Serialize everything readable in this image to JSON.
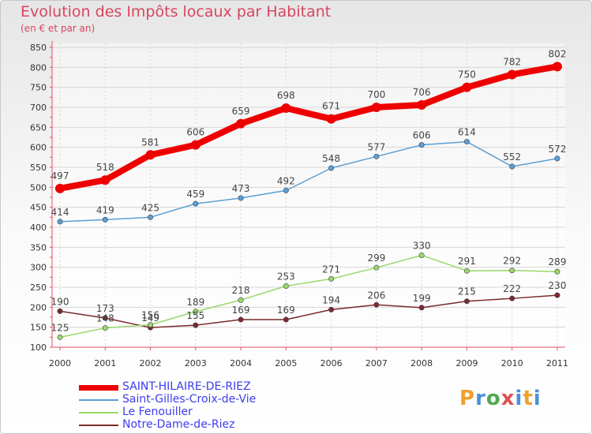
{
  "header": {
    "title": "Evolution des Impôts locaux par Habitant",
    "subtitle": "(en € et par an)"
  },
  "logo": {
    "text": "Proxiti",
    "letters": [
      "P",
      "r",
      "o",
      "x",
      "i",
      "t",
      "i"
    ]
  },
  "chart_data": {
    "type": "line",
    "title": "Evolution des Impôts locaux par Habitant",
    "subtitle": "(en € et par an)",
    "xlabel": "",
    "ylabel": "",
    "x": [
      2000,
      2001,
      2002,
      2003,
      2004,
      2005,
      2006,
      2007,
      2008,
      2009,
      2010,
      2011
    ],
    "x_tick_labels": [
      "2000",
      "2001",
      "2002",
      "2003",
      "2004",
      "2005",
      "2006",
      "2007",
      "2008",
      "2009",
      "2010",
      "2011"
    ],
    "ylim": [
      100,
      850
    ],
    "y_ticks": [
      100,
      150,
      200,
      250,
      300,
      350,
      400,
      450,
      500,
      550,
      600,
      650,
      700,
      750,
      800,
      850
    ],
    "grid": "horizontal",
    "legend_position": "bottom-left",
    "series": [
      {
        "name": "SAINT-HILAIRE-DE-RIEZ",
        "color": "#ee0000",
        "emphasis": "thick",
        "values": [
          497,
          518,
          581,
          606,
          659,
          698,
          671,
          700,
          706,
          750,
          782,
          802
        ]
      },
      {
        "name": "Saint-Gilles-Croix-de-Vie",
        "color": "#5a9fd4",
        "emphasis": "normal",
        "values": [
          414,
          419,
          425,
          459,
          473,
          492,
          548,
          577,
          606,
          614,
          552,
          572
        ]
      },
      {
        "name": "Le Fenouiller",
        "color": "#9ad86a",
        "emphasis": "normal",
        "values": [
          125,
          148,
          156,
          189,
          218,
          253,
          271,
          299,
          330,
          291,
          292,
          289
        ]
      },
      {
        "name": "Notre-Dame-de-Riez",
        "color": "#7a2a2a",
        "emphasis": "normal",
        "values": [
          190,
          173,
          149,
          155,
          169,
          169,
          194,
          206,
          199,
          215,
          222,
          230
        ]
      }
    ]
  }
}
